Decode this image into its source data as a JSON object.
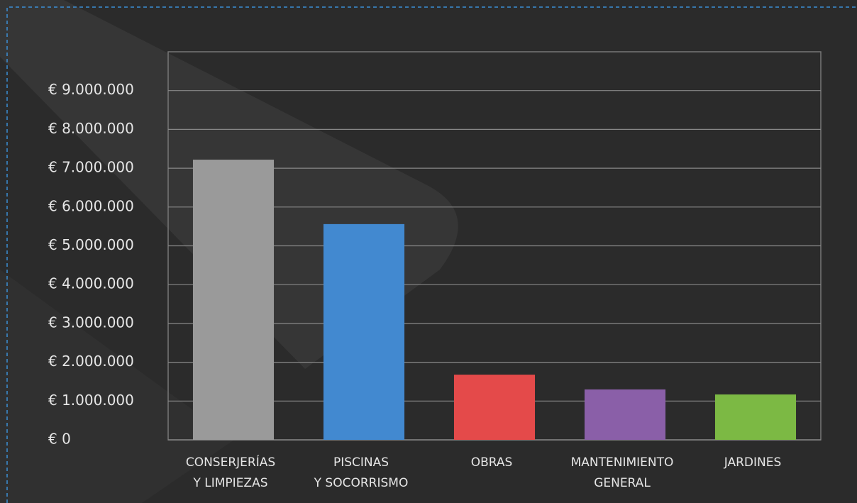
{
  "chart_data": {
    "type": "bar",
    "categories": [
      [
        "CONSERJERÍAS",
        "Y LIMPIEZAS"
      ],
      [
        "PISCINAS",
        "Y SOCORRISMO"
      ],
      [
        "OBRAS"
      ],
      [
        "MANTENIMIENTO",
        "GENERAL"
      ],
      [
        "JARDINES"
      ]
    ],
    "values": [
      7220000,
      5560000,
      1680000,
      1300000,
      1170000
    ],
    "colors": [
      "#9a9a9a",
      "#4289d0",
      "#e44a4a",
      "#8a5fa8",
      "#7cb944"
    ],
    "ylim": [
      0,
      10000000
    ],
    "yticks": [
      {
        "value": 0,
        "label": "€ 0"
      },
      {
        "value": 1000000,
        "label": "€ 1.000.000"
      },
      {
        "value": 2000000,
        "label": "€ 2.000.000"
      },
      {
        "value": 3000000,
        "label": "€ 3.000.000"
      },
      {
        "value": 4000000,
        "label": "€ 4.000.000"
      },
      {
        "value": 5000000,
        "label": "€ 5.000.000"
      },
      {
        "value": 6000000,
        "label": "€ 6.000.000"
      },
      {
        "value": 7000000,
        "label": "€ 7.000.000"
      },
      {
        "value": 8000000,
        "label": "€ 8.000.000"
      },
      {
        "value": 9000000,
        "label": "€ 9.000.000"
      }
    ],
    "grid": true
  }
}
